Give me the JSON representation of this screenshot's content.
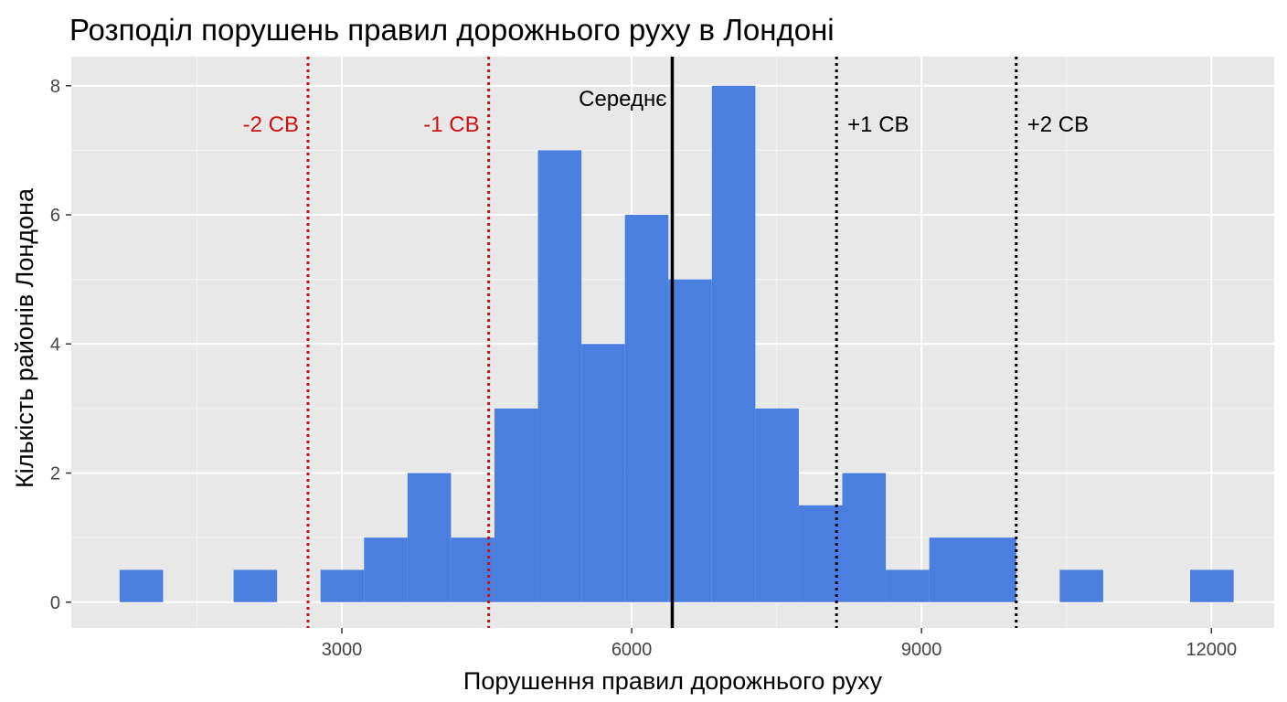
{
  "chart_data": {
    "type": "bar",
    "subtype": "histogram",
    "title": "Розподіл порушень правил дорожнього руху в Лондоні",
    "xlabel": "Порушення правил дорожнього руху",
    "ylabel": "Кількість районів Лондона",
    "xlim": [
      200,
      12650
    ],
    "ylim": [
      -0.4,
      8.45
    ],
    "x_ticks": [
      3000,
      6000,
      9000,
      12000
    ],
    "y_ticks": [
      0,
      2,
      4,
      6,
      8
    ],
    "grid": true,
    "bar_color": "#4a7fe0",
    "panel_color": "#e8e8e8",
    "bins": [
      {
        "x0": 700,
        "x1": 1150,
        "count": 0.5
      },
      {
        "x0": 1880,
        "x1": 2330,
        "count": 0.5
      },
      {
        "x0": 2780,
        "x1": 3230,
        "count": 0.5
      },
      {
        "x0": 3230,
        "x1": 3680,
        "count": 1
      },
      {
        "x0": 3680,
        "x1": 4130,
        "count": 2
      },
      {
        "x0": 4130,
        "x1": 4580,
        "count": 1
      },
      {
        "x0": 4580,
        "x1": 5030,
        "count": 3
      },
      {
        "x0": 5030,
        "x1": 5480,
        "count": 7
      },
      {
        "x0": 5480,
        "x1": 5930,
        "count": 4
      },
      {
        "x0": 5930,
        "x1": 6380,
        "count": 6
      },
      {
        "x0": 6380,
        "x1": 6830,
        "count": 5
      },
      {
        "x0": 6830,
        "x1": 7280,
        "count": 8
      },
      {
        "x0": 7280,
        "x1": 7730,
        "count": 3
      },
      {
        "x0": 7730,
        "x1": 8180,
        "count": 1.5
      },
      {
        "x0": 8180,
        "x1": 8630,
        "count": 2
      },
      {
        "x0": 8630,
        "x1": 9080,
        "count": 0.5
      },
      {
        "x0": 9080,
        "x1": 9980,
        "count": 1
      },
      {
        "x0": 10430,
        "x1": 10880,
        "count": 0.5
      },
      {
        "x0": 11780,
        "x1": 12230,
        "count": 0.5
      }
    ],
    "reference_lines": [
      {
        "x": 2650,
        "label": "-2 СВ",
        "color": "#cc1111",
        "style": "dotted",
        "label_side": "left"
      },
      {
        "x": 4520,
        "label": "-1 СВ",
        "color": "#cc1111",
        "style": "dotted",
        "label_side": "left"
      },
      {
        "x": 6420,
        "label": "Середнє",
        "color": "#000000",
        "style": "solid",
        "label_side": "left"
      },
      {
        "x": 8120,
        "label": "+1 СВ",
        "color": "#000000",
        "style": "dotted",
        "label_side": "right"
      },
      {
        "x": 9980,
        "label": "+2 СВ",
        "color": "#000000",
        "style": "dotted",
        "label_side": "right"
      }
    ]
  }
}
